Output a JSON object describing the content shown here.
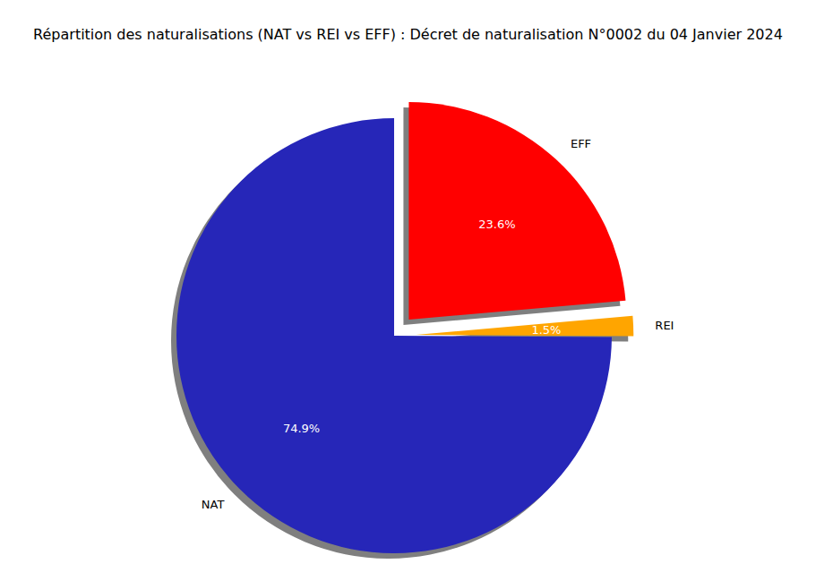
{
  "chart_data": {
    "type": "pie",
    "title": "Répartition des naturalisations (NAT vs REI vs EFF) : Décret de naturalisation N°0002 du 04 Janvier 2024",
    "categories": [
      "NAT",
      "REI",
      "EFF"
    ],
    "values": [
      74.9,
      1.5,
      23.6
    ],
    "value_labels": [
      "74.9%",
      "1.5%",
      "23.6%"
    ],
    "colors": [
      "#2626b8",
      "#ffa500",
      "#ff0000"
    ],
    "data_labels": true
  }
}
